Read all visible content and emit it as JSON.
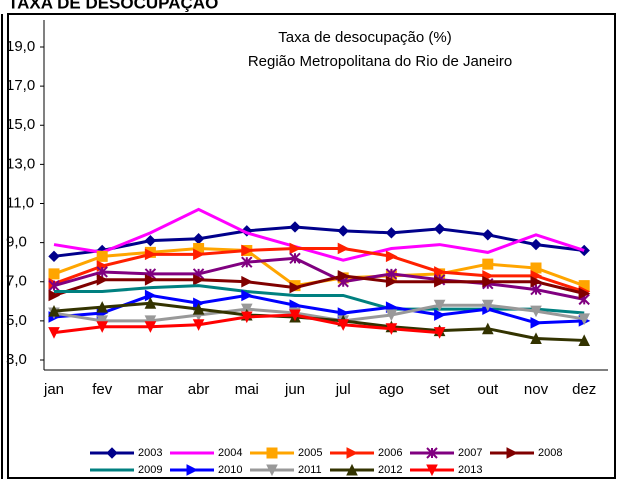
{
  "header": "TAXA DE DESOCUPAÇÃO",
  "chart_data": {
    "type": "line",
    "title": "Taxa de desocupação (%)",
    "subtitle": "Região Metropolitana do Rio de Janeiro",
    "categories": [
      "jan",
      "fev",
      "mar",
      "abr",
      "mai",
      "jun",
      "jul",
      "ago",
      "set",
      "out",
      "nov",
      "dez"
    ],
    "ylim": [
      3.0,
      19.0
    ],
    "yticks": [
      {
        "value": 3,
        "label": "3,0"
      },
      {
        "value": 5,
        "label": "5,0"
      },
      {
        "value": 7,
        "label": "7,0"
      },
      {
        "value": 9,
        "label": "9,0"
      },
      {
        "value": 11,
        "label": "11,0"
      },
      {
        "value": 13,
        "label": "13,0"
      },
      {
        "value": 15,
        "label": "15,0"
      },
      {
        "value": 17,
        "label": "17,0"
      },
      {
        "value": 19,
        "label": "19,0"
      }
    ],
    "grid": false,
    "series": [
      {
        "name": "2003",
        "color": "#00008b",
        "marker": "diamond",
        "values": [
          8.3,
          8.6,
          9.1,
          9.2,
          9.6,
          9.8,
          9.6,
          9.5,
          9.7,
          9.4,
          8.9,
          8.6
        ]
      },
      {
        "name": "2004",
        "color": "#ff00ff",
        "marker": "none",
        "values": [
          8.9,
          8.5,
          9.5,
          10.7,
          9.5,
          8.8,
          8.1,
          8.7,
          8.9,
          8.5,
          9.4,
          8.6
        ]
      },
      {
        "name": "2005",
        "color": "#ffa500",
        "marker": "square",
        "values": [
          7.4,
          8.3,
          8.5,
          8.7,
          8.6,
          6.8,
          7.2,
          7.3,
          7.4,
          7.9,
          7.7,
          6.8
        ]
      },
      {
        "name": "2006",
        "color": "#ff2000",
        "marker": "right",
        "values": [
          6.9,
          7.8,
          8.4,
          8.4,
          8.6,
          8.7,
          8.7,
          8.3,
          7.5,
          7.3,
          7.3,
          6.5
        ]
      },
      {
        "name": "2007",
        "color": "#800080",
        "marker": "star",
        "values": [
          6.8,
          7.5,
          7.4,
          7.4,
          8.0,
          8.2,
          7.0,
          7.4,
          7.1,
          6.9,
          6.6,
          6.1
        ]
      },
      {
        "name": "2008",
        "color": "#800000",
        "marker": "right",
        "values": [
          6.3,
          7.1,
          7.1,
          7.1,
          7.0,
          6.7,
          7.3,
          7.0,
          7.0,
          7.0,
          7.0,
          6.4
        ]
      },
      {
        "name": "2009",
        "color": "#008080",
        "marker": "none",
        "values": [
          6.5,
          6.5,
          6.7,
          6.8,
          6.5,
          6.3,
          6.3,
          5.6,
          5.6,
          5.6,
          5.6,
          5.4
        ]
      },
      {
        "name": "2010",
        "color": "#0000ff",
        "marker": "right",
        "values": [
          5.2,
          5.4,
          6.3,
          5.9,
          6.3,
          5.8,
          5.4,
          5.7,
          5.3,
          5.6,
          4.9,
          5.0
        ]
      },
      {
        "name": "2011",
        "color": "#999999",
        "marker": "down",
        "values": [
          5.4,
          5.0,
          5.0,
          5.3,
          5.6,
          5.4,
          5.0,
          5.3,
          5.8,
          5.8,
          5.5,
          5.1
        ]
      },
      {
        "name": "2012",
        "color": "#333300",
        "marker": "up",
        "values": [
          5.5,
          5.7,
          5.9,
          5.6,
          5.3,
          5.2,
          5.0,
          4.7,
          4.5,
          4.6,
          4.1,
          4.0
        ]
      },
      {
        "name": "2013",
        "color": "#ff0000",
        "marker": "down",
        "values": [
          4.4,
          4.7,
          4.7,
          4.8,
          5.2,
          5.3,
          4.8,
          4.6,
          4.4,
          null,
          null,
          null
        ]
      }
    ]
  }
}
